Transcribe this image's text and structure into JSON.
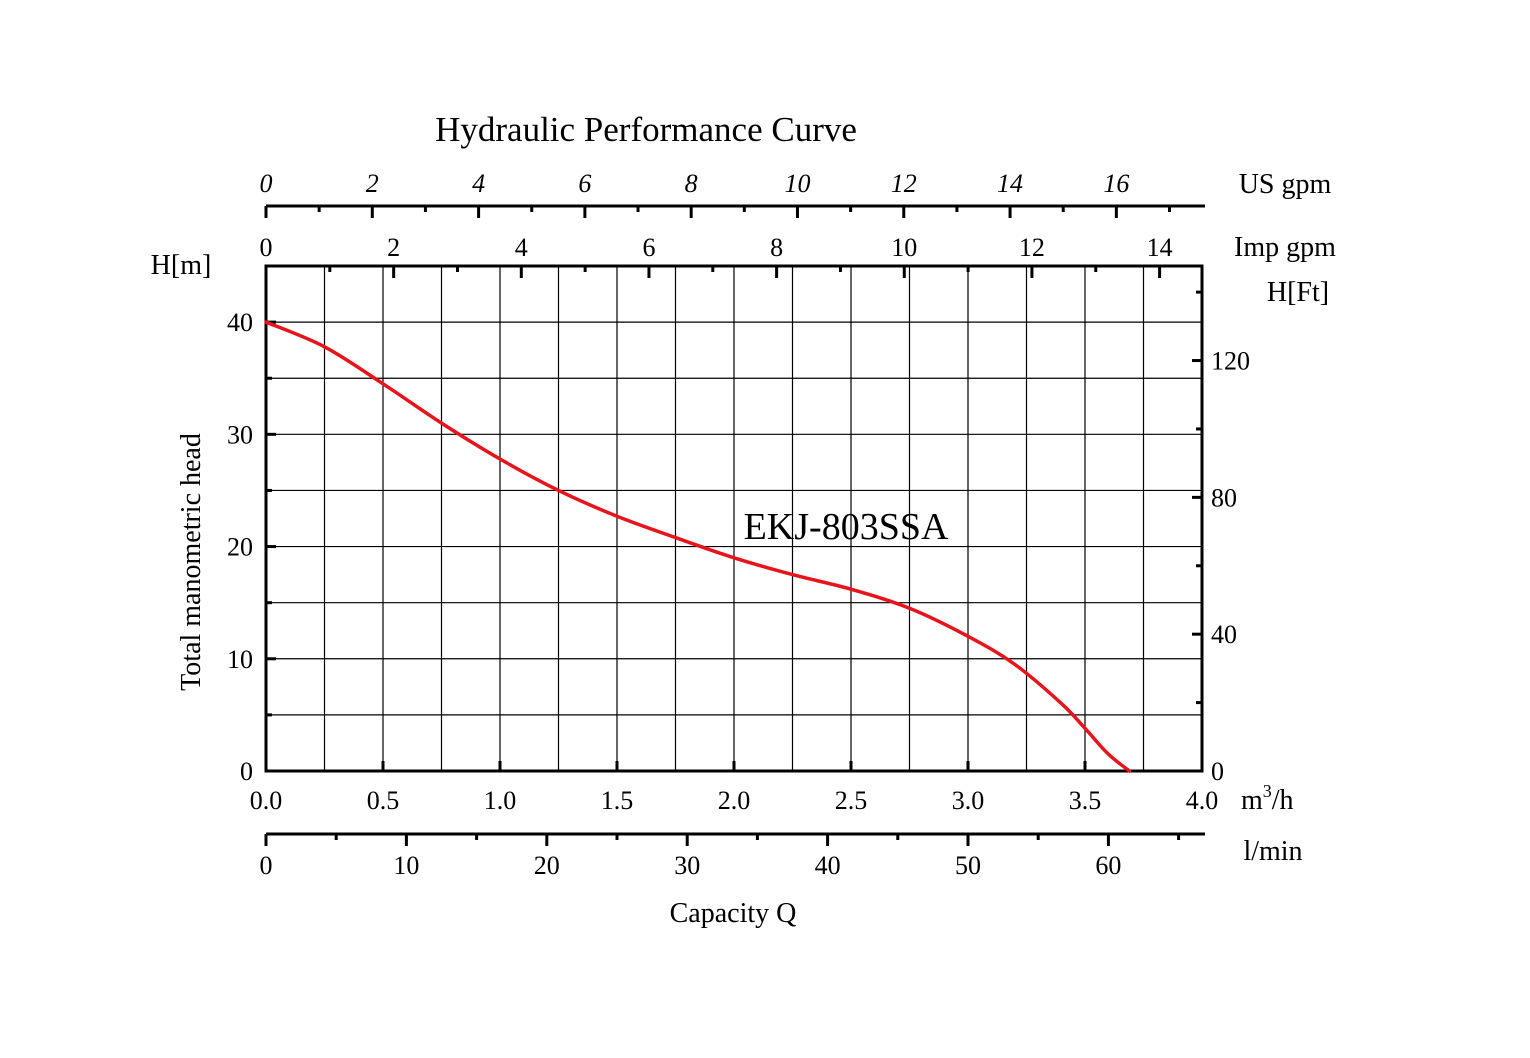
{
  "chart_data": {
    "type": "line",
    "title": "Hydraulic Performance Curve",
    "series": [
      {
        "name": "EKJ-803SSA",
        "color": "#e8141b",
        "x": [
          0.0,
          0.25,
          0.5,
          0.75,
          1.0,
          1.25,
          1.5,
          1.75,
          2.0,
          2.25,
          2.5,
          2.75,
          3.0,
          3.2,
          3.4,
          3.5,
          3.6,
          3.69
        ],
        "y": [
          40.0,
          37.8,
          34.5,
          31.0,
          27.8,
          25.0,
          22.7,
          20.8,
          19.0,
          17.5,
          16.2,
          14.5,
          12.0,
          9.5,
          6.0,
          3.8,
          1.5,
          0.0
        ]
      }
    ],
    "axes": {
      "bottom": {
        "unit": "m",
        "unit_sup": "3",
        "unit_tail": "/h",
        "min": 0,
        "max": 4,
        "ticks": [
          "0.0",
          "0.5",
          "1.0",
          "1.5",
          "2.0",
          "2.5",
          "3.0",
          "3.5",
          "4.0"
        ]
      },
      "lmin": {
        "unit": "l/min",
        "ticks": [
          "0",
          "10",
          "20",
          "30",
          "40",
          "50",
          "60"
        ],
        "label": "Capacity Q"
      },
      "left": {
        "unit": "H[m]",
        "label": "Total manometric head",
        "min": 0,
        "max": 45,
        "ticks": [
          "0",
          "10",
          "20",
          "30",
          "40"
        ]
      },
      "right": {
        "unit": "H[Ft]",
        "ticks": [
          "0",
          "40",
          "80",
          "120"
        ]
      },
      "imp": {
        "unit": "Imp gpm",
        "ticks": [
          "0",
          "2",
          "4",
          "6",
          "8",
          "10",
          "12",
          "14"
        ]
      },
      "us": {
        "unit": "US gpm",
        "ticks": [
          "0",
          "2",
          "4",
          "6",
          "8",
          "10",
          "12",
          "14",
          "16"
        ]
      }
    },
    "grid": true
  }
}
